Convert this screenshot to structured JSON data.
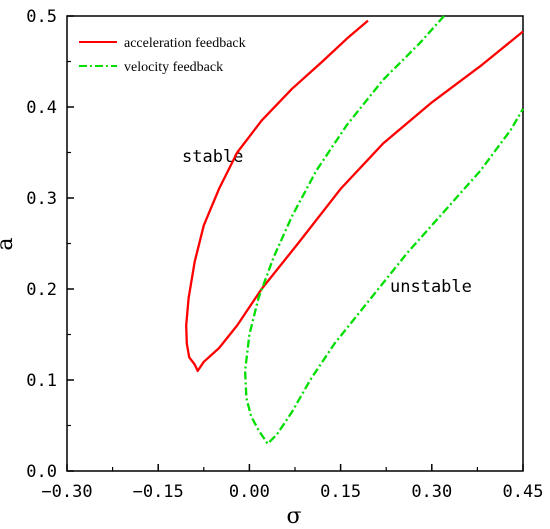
{
  "chart_data": {
    "type": "line",
    "xlabel": "σ",
    "ylabel": "a",
    "xlim": [
      -0.3,
      0.45
    ],
    "ylim": [
      0.0,
      0.5
    ],
    "xticks": [
      "−0.30",
      "−0.15",
      "0.00",
      "0.15",
      "0.30",
      "0.45"
    ],
    "yticks": [
      "0.0",
      "0.1",
      "0.2",
      "0.3",
      "0.4",
      "0.5"
    ],
    "legend_placement": "top-left",
    "grid": false,
    "annotations": [
      {
        "text": "stable",
        "x": -0.07,
        "y": 0.345
      },
      {
        "text": "unstable",
        "x": 0.31,
        "y": 0.2
      }
    ],
    "series": [
      {
        "name": "acceleration feedback",
        "color": "#ff0000",
        "style": "solid",
        "points": [
          [
            0.195,
            0.495
          ],
          [
            0.16,
            0.475
          ],
          [
            0.12,
            0.45
          ],
          [
            0.07,
            0.42
          ],
          [
            0.02,
            0.385
          ],
          [
            -0.02,
            0.35
          ],
          [
            -0.05,
            0.31
          ],
          [
            -0.075,
            0.27
          ],
          [
            -0.09,
            0.23
          ],
          [
            -0.1,
            0.19
          ],
          [
            -0.104,
            0.16
          ],
          [
            -0.103,
            0.14
          ],
          [
            -0.099,
            0.125
          ],
          [
            -0.09,
            0.117
          ],
          [
            -0.085,
            0.11
          ],
          [
            -0.075,
            0.12
          ],
          [
            -0.05,
            0.135
          ],
          [
            -0.02,
            0.16
          ],
          [
            0.02,
            0.2
          ],
          [
            0.08,
            0.25
          ],
          [
            0.15,
            0.31
          ],
          [
            0.22,
            0.36
          ],
          [
            0.3,
            0.405
          ],
          [
            0.38,
            0.445
          ],
          [
            0.45,
            0.483
          ]
        ]
      },
      {
        "name": "velocity feedback",
        "color": "#00dd00",
        "style": "dashdot",
        "points": [
          [
            0.32,
            0.5
          ],
          [
            0.28,
            0.47
          ],
          [
            0.22,
            0.43
          ],
          [
            0.16,
            0.38
          ],
          [
            0.11,
            0.33
          ],
          [
            0.07,
            0.28
          ],
          [
            0.04,
            0.235
          ],
          [
            0.015,
            0.19
          ],
          [
            0.0,
            0.15
          ],
          [
            -0.007,
            0.11
          ],
          [
            -0.005,
            0.08
          ],
          [
            0.003,
            0.06
          ],
          [
            0.015,
            0.045
          ],
          [
            0.03,
            0.03
          ],
          [
            0.045,
            0.04
          ],
          [
            0.07,
            0.065
          ],
          [
            0.1,
            0.1
          ],
          [
            0.14,
            0.14
          ],
          [
            0.2,
            0.19
          ],
          [
            0.26,
            0.24
          ],
          [
            0.32,
            0.285
          ],
          [
            0.38,
            0.33
          ],
          [
            0.43,
            0.375
          ],
          [
            0.45,
            0.398
          ]
        ]
      }
    ]
  }
}
